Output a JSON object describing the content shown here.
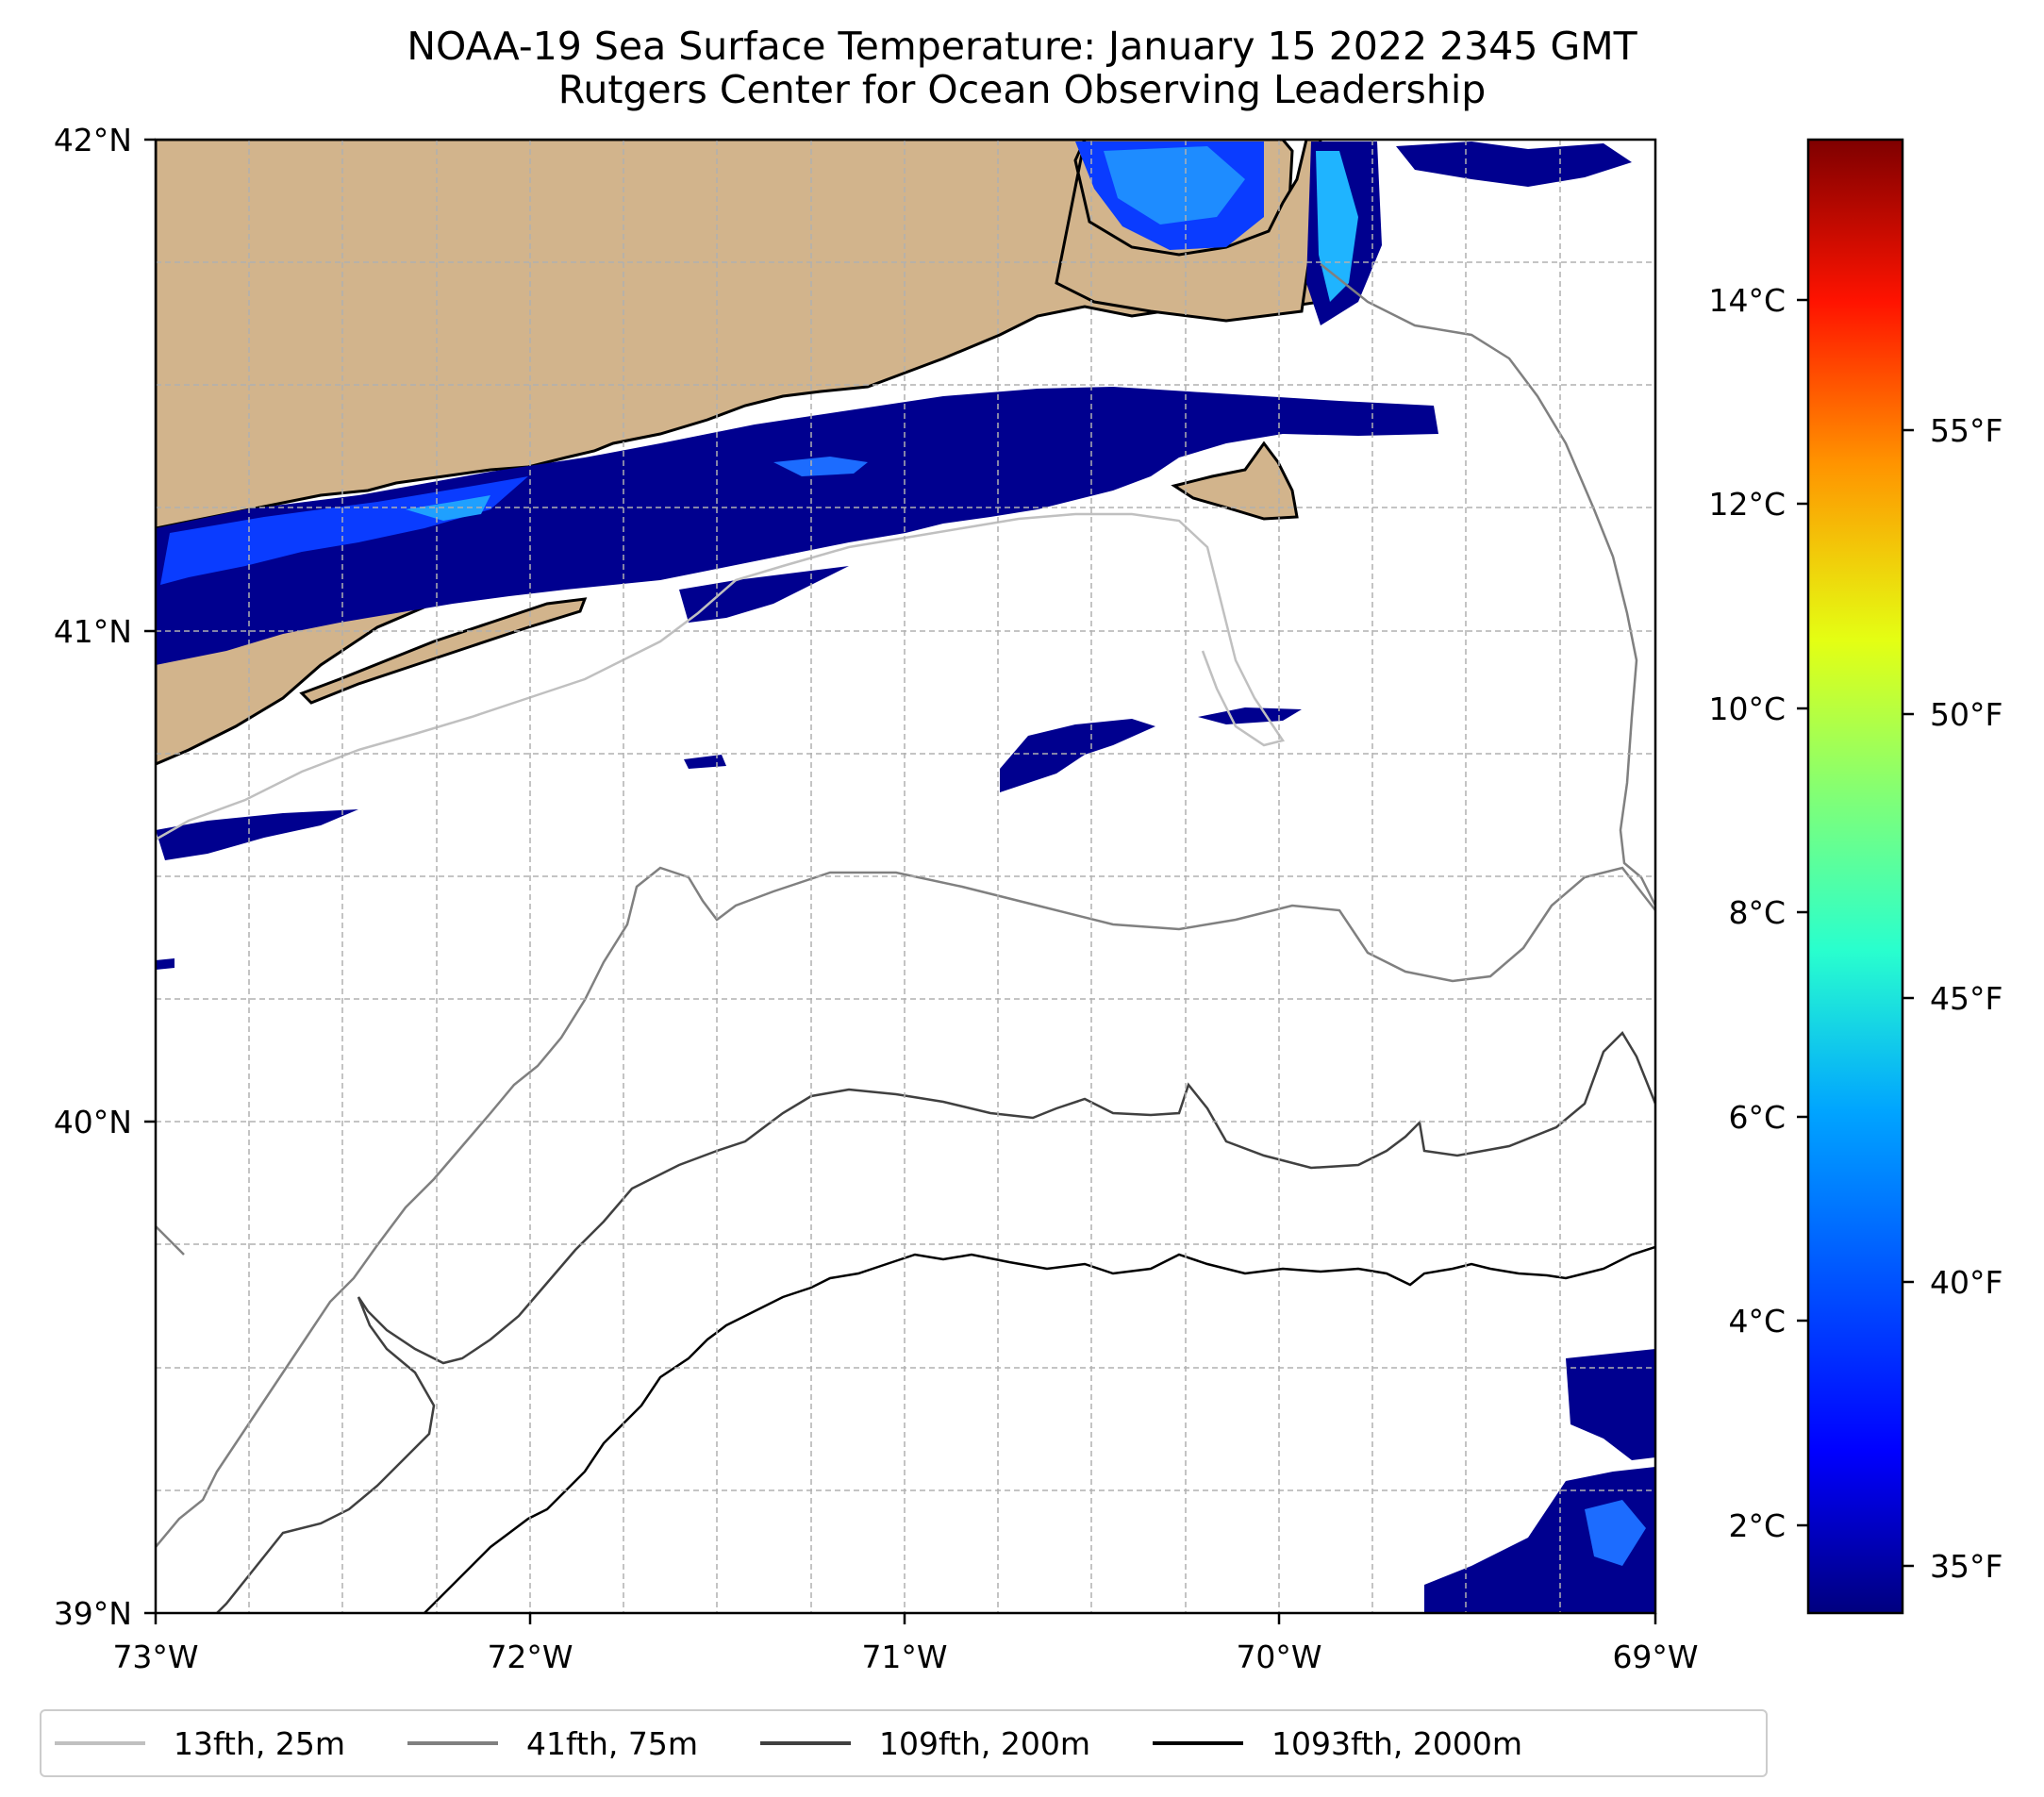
{
  "title": {
    "line1": "NOAA-19 Sea Surface Temperature: January 15 2022 2345 GMT",
    "line2": "Rutgers Center for Ocean Observing Leadership"
  },
  "map": {
    "lat_range": [
      39,
      42
    ],
    "lon_range": [
      -73,
      -69
    ],
    "lat_ticks": [
      "39°N",
      "40°N",
      "41°N",
      "42°N"
    ],
    "lon_ticks": [
      "73°W",
      "72°W",
      "71°W",
      "70°W",
      "69°W"
    ],
    "colors": {
      "land": "#d2b48c",
      "coastline": "#000000",
      "grid": "#b0b0b0"
    }
  },
  "colorbar": {
    "colormap": "jet",
    "celsius_ticks": [
      "2°C",
      "4°C",
      "6°C",
      "8°C",
      "10°C",
      "12°C",
      "14°C"
    ],
    "fahrenheit_ticks": [
      "35°F",
      "40°F",
      "45°F",
      "50°F",
      "55°F"
    ],
    "range_c": [
      1.3,
      16.0
    ]
  },
  "legend": {
    "items": [
      {
        "label": "13fth, 25m",
        "color": "#c0c0c0"
      },
      {
        "label": "41fth, 75m",
        "color": "#808080"
      },
      {
        "label": "109fth, 200m",
        "color": "#404040"
      },
      {
        "label": "1093fth, 2000m",
        "color": "#000000"
      }
    ]
  }
}
